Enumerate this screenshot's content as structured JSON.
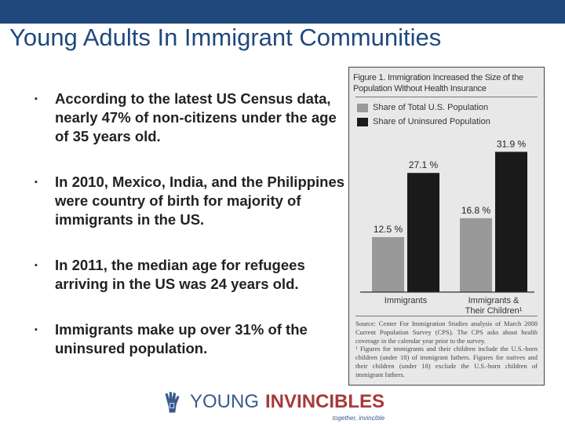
{
  "slide": {
    "title": "Young Adults In Immigrant Communities",
    "bullets": [
      "According to the latest US Census data, nearly 47% of non-citizens under the age of 35 years old.",
      "In 2010, Mexico, India, and the Philippines were country of birth for majority of immigrants in the US.",
      "In 2011, the median age for refugees arriving in the US was 24 years old.",
      "Immigrants make up over 31% of the uninsured population."
    ],
    "bullet_marker": "▪"
  },
  "colors": {
    "header_bar": "#1f497d",
    "title": "#1f497d",
    "logo_blue": "#3a5a8c",
    "logo_red": "#a63a3a"
  },
  "chart_data": {
    "type": "bar",
    "title": "Figure 1. Immigration Increased the Size of the Population Without Health Insurance",
    "categories": [
      "Immigrants",
      "Immigrants & Their Children¹"
    ],
    "series": [
      {
        "name": "Share of Total U.S. Population",
        "values": [
          12.5,
          16.8
        ],
        "color": "#999999"
      },
      {
        "name": "Share of Uninsured Population",
        "values": [
          27.1,
          31.9
        ],
        "color": "#1a1a1a"
      }
    ],
    "data_labels": [
      [
        "12.5 %",
        "16.8 %"
      ],
      [
        "27.1 %",
        "31.9 %"
      ]
    ],
    "ylim": [
      0,
      33
    ],
    "grid": false,
    "legend": "top-left",
    "source": "Source: Center For Immigration Studies analysis of March 2008 Current Population Survey (CPS). The CPS asks about health coverage in the calendar year prior to the survey.",
    "footnote": "¹ Figures for immigrants and their children include the U.S.-born children (under 18) of immigrant fathers. Figures for natives and their children (under 18) exclude the U.S.-born children of immigrant fathers."
  },
  "logo": {
    "word1": "YOUNG",
    "word2": "INVINCIBLES",
    "tagline": "together, invincible"
  }
}
